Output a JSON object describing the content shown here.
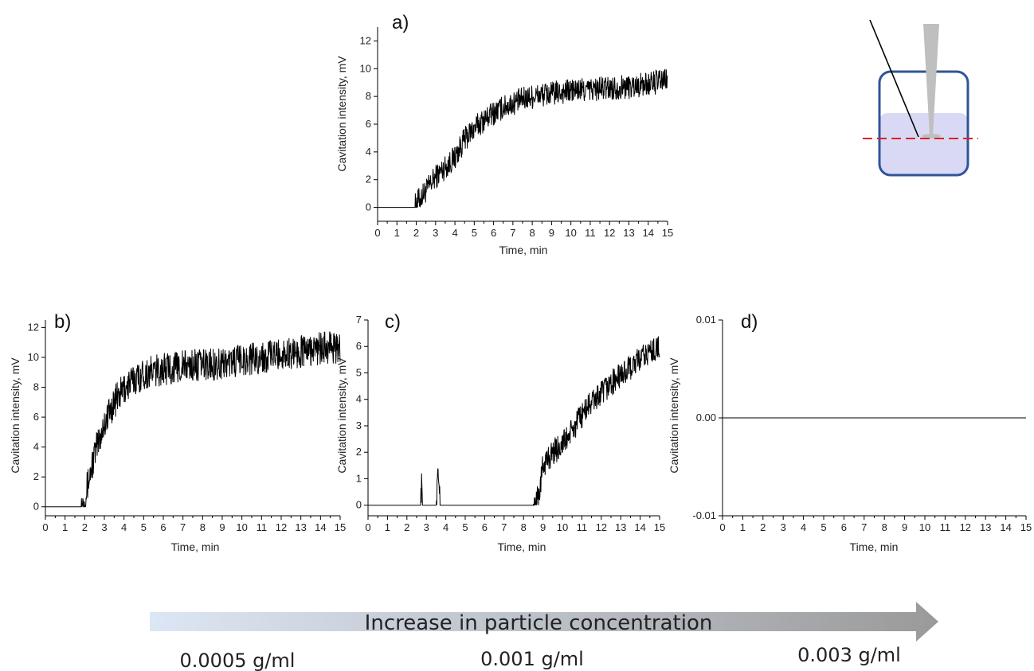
{
  "chart_data": [
    {
      "panel": "a)",
      "type": "line",
      "xlabel": "Time, min",
      "ylabel": "Cavitation intensity, mV",
      "xlim": [
        0,
        15
      ],
      "ylim": [
        -1,
        13
      ],
      "xticks": [
        "0",
        "1",
        "2",
        "3",
        "4",
        "5",
        "6",
        "7",
        "8",
        "9",
        "10",
        "11",
        "12",
        "13",
        "14",
        "15"
      ],
      "yticks": [
        "0",
        "2",
        "4",
        "6",
        "8",
        "10",
        "12"
      ],
      "series": [
        {
          "x": [
            0,
            1.9,
            2.0,
            2.5,
            3.0,
            3.5,
            4.0,
            4.5,
            5.0,
            5.5,
            6.0,
            6.5,
            7.0,
            7.5,
            8.0,
            9.0,
            10.0,
            11.0,
            12.0,
            13.0,
            14.0,
            15.0
          ],
          "y": [
            0,
            0,
            0.3,
            1.2,
            2.2,
            2.9,
            3.6,
            4.9,
            5.7,
            6.3,
            6.8,
            7.2,
            7.5,
            7.8,
            8.0,
            8.2,
            8.4,
            8.5,
            8.6,
            8.7,
            8.9,
            9.2
          ],
          "noise": 0.9
        }
      ]
    },
    {
      "panel": "b)",
      "type": "line",
      "xlabel": "Time, min",
      "ylabel": "Cavitation intensity, mV",
      "xlim": [
        0,
        15
      ],
      "ylim": [
        -0.6,
        12.5
      ],
      "xticks": [
        "0",
        "1",
        "2",
        "3",
        "4",
        "5",
        "6",
        "7",
        "8",
        "9",
        "10",
        "11",
        "12",
        "13",
        "14",
        "15"
      ],
      "yticks": [
        "0",
        "2",
        "4",
        "6",
        "8",
        "10",
        "12"
      ],
      "series": [
        {
          "x": [
            0,
            1.8,
            2.0,
            2.5,
            3.0,
            3.5,
            4.0,
            4.5,
            5.0,
            6.0,
            7.0,
            8.0,
            9.0,
            10.0,
            11.0,
            12.0,
            13.0,
            14.0,
            15.0
          ],
          "y": [
            0,
            0,
            0.6,
            3.5,
            5.6,
            7.0,
            7.9,
            8.5,
            8.9,
            9.2,
            9.4,
            9.5,
            9.6,
            9.8,
            10.0,
            10.2,
            10.4,
            10.6,
            10.7
          ],
          "noise": 1.1
        }
      ]
    },
    {
      "panel": "c)",
      "type": "line",
      "xlabel": "Time, min",
      "ylabel": "Cavitation intensity, mV",
      "xlim": [
        0,
        15
      ],
      "ylim": [
        -0.4,
        7
      ],
      "xticks": [
        "0",
        "1",
        "2",
        "3",
        "4",
        "5",
        "6",
        "7",
        "8",
        "9",
        "10",
        "11",
        "12",
        "13",
        "14",
        "15"
      ],
      "yticks": [
        "0",
        "1",
        "2",
        "3",
        "4",
        "5",
        "6",
        "7"
      ],
      "series": [
        {
          "x": [
            0,
            2.7,
            2.75,
            2.8,
            3.5,
            3.6,
            3.65,
            3.7,
            8.5,
            8.8,
            9.0,
            9.5,
            10.0,
            10.5,
            11.0,
            11.5,
            12.0,
            12.5,
            13.0,
            13.5,
            14.0,
            14.5,
            15.0
          ],
          "y": [
            0,
            0,
            0.8,
            0,
            0,
            1.3,
            0.9,
            0,
            0,
            0.4,
            1.5,
            2.0,
            2.3,
            2.8,
            3.4,
            3.9,
            4.2,
            4.6,
            4.9,
            5.2,
            5.5,
            5.8,
            6.0
          ],
          "noise": 0.5
        }
      ]
    },
    {
      "panel": "d)",
      "type": "line",
      "xlabel": "Time, min",
      "ylabel": "Cavitation intensity, mV",
      "xlim": [
        0,
        15
      ],
      "ylim": [
        -0.01,
        0.01
      ],
      "xticks": [
        "0",
        "1",
        "2",
        "3",
        "4",
        "5",
        "6",
        "7",
        "8",
        "9",
        "10",
        "11",
        "12",
        "13",
        "14",
        "15"
      ],
      "yticks": [
        "-0.01",
        "0.00",
        "0.01"
      ],
      "series": [
        {
          "x": [
            0,
            15
          ],
          "y": [
            0,
            0
          ],
          "noise": 0
        }
      ]
    }
  ],
  "arrow": {
    "label": "Increase in particle concentration",
    "concentrations": [
      "0.0005 g/ml",
      "0.001 g/ml",
      "0.003 g/ml"
    ]
  },
  "colors": {
    "line": "#000000",
    "vessel_border": "#2f5597",
    "liquid": "#d9d9f5",
    "probe": "#bfbfbf",
    "dashed_line": "#e02020",
    "arrow_start": "#dde6f5",
    "arrow_end": "#9a9a9a"
  }
}
